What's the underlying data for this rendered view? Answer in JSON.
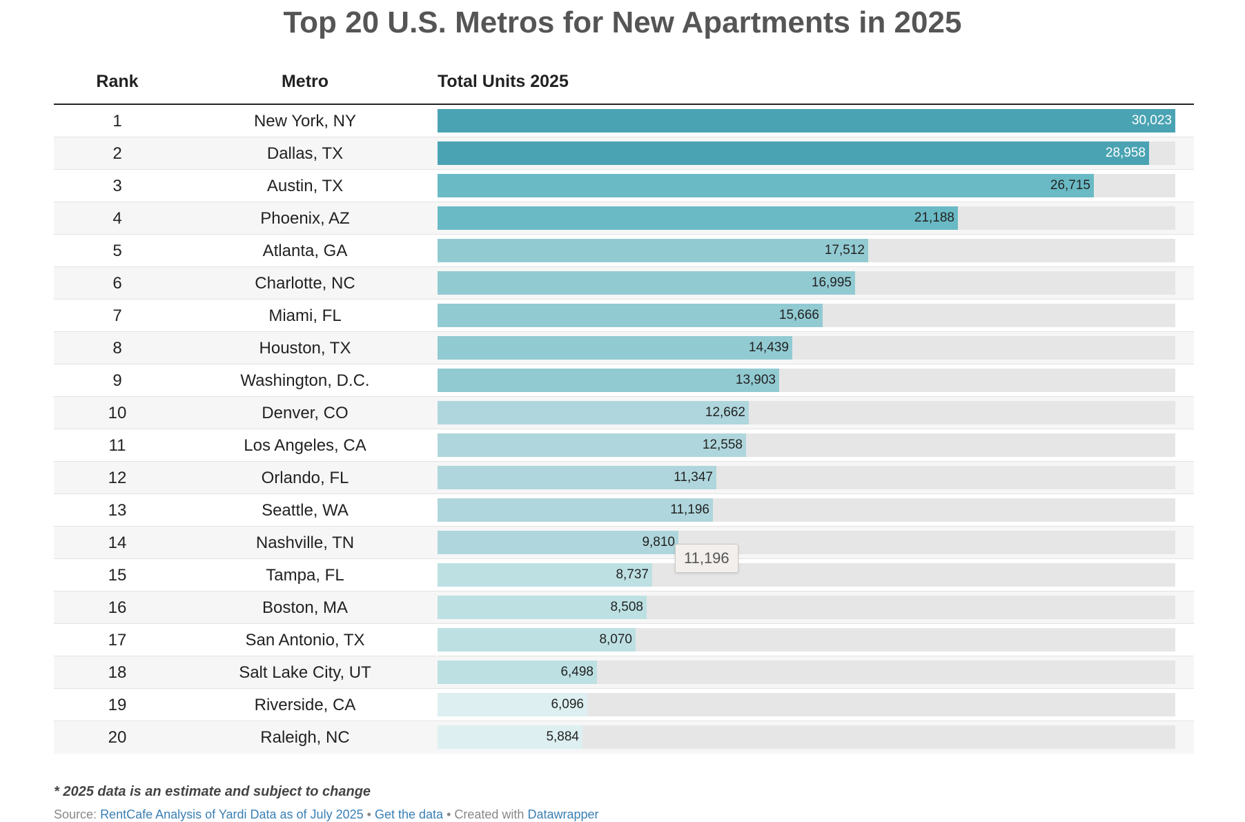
{
  "chart_data": {
    "type": "bar",
    "title": "Top 20 U.S. Metros for New Apartments in 2025",
    "columns": [
      "Rank",
      "Metro",
      "Total Units 2025"
    ],
    "xlim": [
      0,
      30023
    ],
    "rows": [
      {
        "rank": "1",
        "metro": "New York, NY",
        "value": 30023,
        "label": "30,023",
        "color": "#4aa3b3"
      },
      {
        "rank": "2",
        "metro": "Dallas, TX",
        "value": 28958,
        "label": "28,958",
        "color": "#4aa3b3"
      },
      {
        "rank": "3",
        "metro": "Austin, TX",
        "value": 26715,
        "label": "26,715",
        "color": "#6abac5"
      },
      {
        "rank": "4",
        "metro": "Phoenix, AZ",
        "value": 21188,
        "label": "21,188",
        "color": "#6abac5"
      },
      {
        "rank": "5",
        "metro": "Atlanta, GA",
        "value": 17512,
        "label": "17,512",
        "color": "#92cad2"
      },
      {
        "rank": "6",
        "metro": "Charlotte, NC",
        "value": 16995,
        "label": "16,995",
        "color": "#92cad2"
      },
      {
        "rank": "7",
        "metro": "Miami, FL",
        "value": 15666,
        "label": "15,666",
        "color": "#92cad2"
      },
      {
        "rank": "8",
        "metro": "Houston, TX",
        "value": 14439,
        "label": "14,439",
        "color": "#92cad2"
      },
      {
        "rank": "9",
        "metro": "Washington, D.C.",
        "value": 13903,
        "label": "13,903",
        "color": "#92cad2"
      },
      {
        "rank": "10",
        "metro": "Denver, CO",
        "value": 12662,
        "label": "12,662",
        "color": "#afd6dc"
      },
      {
        "rank": "11",
        "metro": "Los Angeles, CA",
        "value": 12558,
        "label": "12,558",
        "color": "#afd6dc"
      },
      {
        "rank": "12",
        "metro": "Orlando, FL",
        "value": 11347,
        "label": "11,347",
        "color": "#afd6dc"
      },
      {
        "rank": "13",
        "metro": "Seattle, WA",
        "value": 11196,
        "label": "11,196",
        "color": "#afd6dc"
      },
      {
        "rank": "14",
        "metro": "Nashville, TN",
        "value": 9810,
        "label": "9,810",
        "color": "#afd6dc"
      },
      {
        "rank": "15",
        "metro": "Tampa, FL",
        "value": 8737,
        "label": "8,737",
        "color": "#bde0e3"
      },
      {
        "rank": "16",
        "metro": "Boston, MA",
        "value": 8508,
        "label": "8,508",
        "color": "#bde0e3"
      },
      {
        "rank": "17",
        "metro": "San Antonio, TX",
        "value": 8070,
        "label": "8,070",
        "color": "#bde0e3"
      },
      {
        "rank": "18",
        "metro": "Salt Lake City, UT",
        "value": 6498,
        "label": "6,498",
        "color": "#bde0e3"
      },
      {
        "rank": "19",
        "metro": "Riverside, CA",
        "value": 6096,
        "label": "6,096",
        "color": "#ddeff1"
      },
      {
        "rank": "20",
        "metro": "Raleigh, NC",
        "value": 5884,
        "label": "5,884",
        "color": "#ddeff1"
      }
    ],
    "tooltip": "11,196",
    "footnote": "* 2025 data is an estimate and subject to change",
    "source": {
      "prefix": "Source:",
      "source_link": "RentCafe Analysis of Yardi Data as of July 2025",
      "separator": "•",
      "data_link": "Get the data",
      "created": "Created with",
      "tool_link": "Datawrapper"
    },
    "colors": {
      "track": "#e6e6e6",
      "dark_bar": "#4aa3b3"
    }
  }
}
